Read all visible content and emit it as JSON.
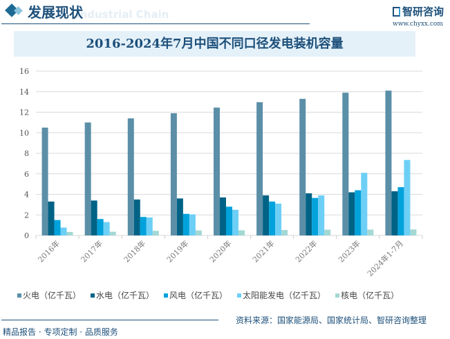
{
  "header": {
    "title": "发展现状",
    "subtitle": "Industrial Chain",
    "logo_text": "智研咨询",
    "url": "www.chyxx.com"
  },
  "footer": {
    "source": "资料来源：国家能源局、国家统计局、智研咨询整理",
    "slogan": "精品报告 · 专项定制 · 品质服务"
  },
  "chart_data": {
    "type": "bar",
    "title": "2016-2024年7月中国不同口径发电装机容量",
    "categories": [
      "2016年",
      "2017年",
      "2018年",
      "2019年",
      "2020年",
      "2021年",
      "2022年",
      "2023年",
      "2024年1-7月"
    ],
    "ylim": [
      0,
      16
    ],
    "yticks": [
      0,
      2,
      4,
      6,
      8,
      10,
      12,
      14,
      16
    ],
    "grid": true,
    "legend_position": "bottom",
    "series": [
      {
        "name": "火电（亿千瓦）",
        "color": "#5b8fa8",
        "values": [
          10.5,
          11.0,
          11.4,
          11.9,
          12.45,
          12.97,
          13.3,
          13.9,
          14.1
        ]
      },
      {
        "name": "水电（亿千瓦）",
        "color": "#006386",
        "values": [
          3.3,
          3.4,
          3.5,
          3.6,
          3.7,
          3.9,
          4.1,
          4.2,
          4.3
        ]
      },
      {
        "name": "风电（亿千瓦）",
        "color": "#00a2dc",
        "values": [
          1.5,
          1.6,
          1.8,
          2.1,
          2.8,
          3.3,
          3.65,
          4.4,
          4.7
        ]
      },
      {
        "name": "太阳能发电（亿千瓦）",
        "color": "#6dcff6",
        "values": [
          0.77,
          1.3,
          1.75,
          2.05,
          2.5,
          3.1,
          3.9,
          6.1,
          7.35
        ]
      },
      {
        "name": "核电（亿千瓦）",
        "color": "#a3d8d4",
        "values": [
          0.34,
          0.36,
          0.45,
          0.49,
          0.5,
          0.53,
          0.56,
          0.57,
          0.58
        ]
      }
    ]
  }
}
